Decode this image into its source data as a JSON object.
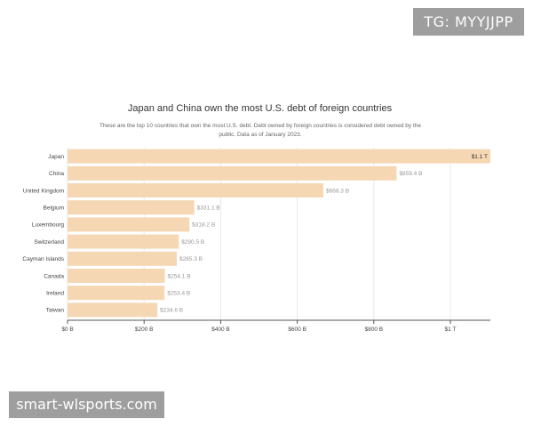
{
  "watermarks": {
    "tg": "TG: MYYJJPP",
    "site": "smart-wlsports.com"
  },
  "chart_data": {
    "type": "bar",
    "orientation": "horizontal",
    "title": "Japan and China own the most U.S. debt of foreign countries",
    "subtitle": "These are the top 10 countries that own the most U.S. debt. Debt owned by foreign countries is considered debt owned by the public. Data as of January 2023.",
    "categories": [
      "Japan",
      "China",
      "United Kingdom",
      "Belgium",
      "Luxembourg",
      "Switzerland",
      "Cayman Islands",
      "Canada",
      "Ireland",
      "Taiwan"
    ],
    "values": [
      1104.4,
      859.4,
      668.3,
      331.1,
      318.2,
      290.5,
      285.3,
      254.1,
      253.4,
      234.6
    ],
    "value_labels": [
      "$1.1 T",
      "$859.4 B",
      "$668.3 B",
      "$331.1 B",
      "$318.2 B",
      "$290.5 B",
      "$285.3 B",
      "$254.1 B",
      "$253.4 B",
      "$234.6 B"
    ],
    "xlim": [
      0,
      1104.4
    ],
    "xticks": [
      0,
      200,
      400,
      600,
      800,
      1000
    ],
    "xtick_labels": [
      "$0 B",
      "$200 B",
      "$400 B",
      "$600 B",
      "$800 B",
      "$1 T"
    ],
    "grid": true,
    "colors": {
      "bar": "#f5d7b4",
      "grid": "#e8e8e8",
      "axis": "#555555"
    }
  }
}
